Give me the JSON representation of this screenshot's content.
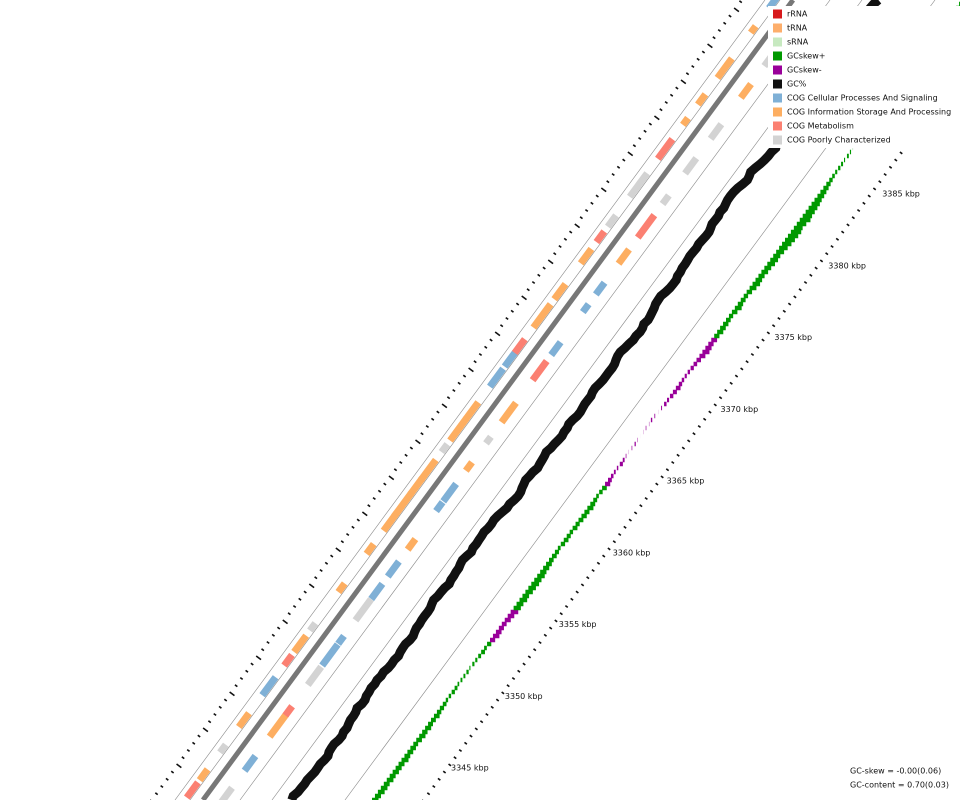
{
  "legend": [
    {
      "label": "rRNA",
      "color": "#d7191c"
    },
    {
      "label": "tRNA",
      "color": "#fdae6b"
    },
    {
      "label": "sRNA",
      "color": "#c7e9c0"
    },
    {
      "label": "GCskew+",
      "color": "#009900"
    },
    {
      "label": "GCskew-",
      "color": "#990099"
    },
    {
      "label": "GC%",
      "color": "#111111"
    },
    {
      "label": "COG Cellular Processes And Signaling",
      "color": "#7fb0d6"
    },
    {
      "label": "COG Information Storage And Processing",
      "color": "#fdae61"
    },
    {
      "label": "COG Metabolism",
      "color": "#fb8072"
    },
    {
      "label": "COG Poorly Characterized",
      "color": "#d3d3d3"
    }
  ],
  "scale_labels": [
    "3345 kbp",
    "3350 kbp",
    "3355 kbp",
    "3360 kbp",
    "3365 kbp",
    "3370 kbp",
    "3375 kbp",
    "3380 kbp",
    "3385 kbp"
  ],
  "stats": [
    "GC-skew = -0.00(0.06)",
    "GC-content = 0.70(0.03)"
  ]
}
